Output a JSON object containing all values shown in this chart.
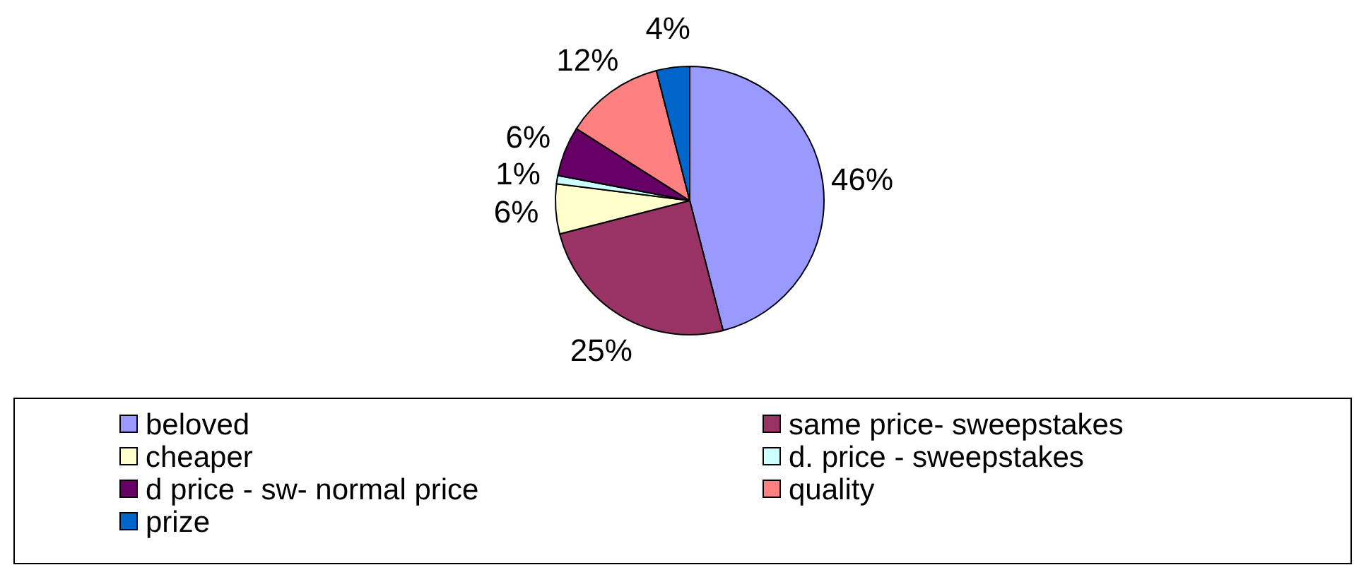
{
  "chart_data": {
    "type": "pie",
    "categories": [
      "beloved",
      "same price- sweepstakes",
      "cheaper",
      "d. price - sweepstakes",
      "d price - sw- normal price",
      "quality",
      "prize"
    ],
    "values": [
      46,
      25,
      6,
      1,
      6,
      12,
      4
    ],
    "colors": [
      "#9999ff",
      "#993366",
      "#ffffcc",
      "#ccffff",
      "#660066",
      "#ff8080",
      "#0066cc"
    ],
    "value_labels": [
      "46%",
      "25%",
      "6%",
      "1%",
      "6%",
      "12%",
      "4%"
    ],
    "legend": "bottom"
  }
}
